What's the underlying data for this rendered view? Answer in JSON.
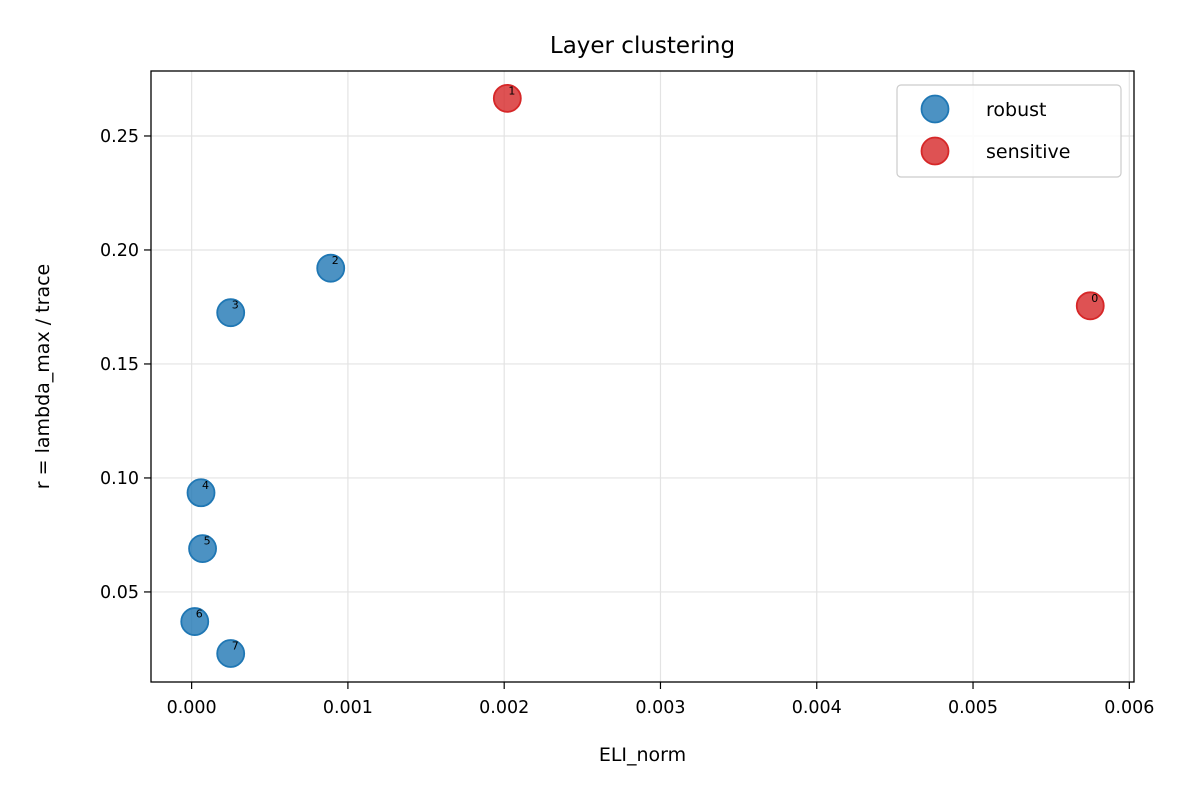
{
  "chart_data": {
    "type": "scatter",
    "title": "Layer clustering",
    "xlabel": "ELI_norm",
    "ylabel": "r = lambda_max / trace",
    "xlim": [
      -0.00026,
      0.00603
    ],
    "ylim": [
      0.0105,
      0.2785
    ],
    "xticks": [
      0.0,
      0.001,
      0.002,
      0.003,
      0.004,
      0.005,
      0.006
    ],
    "xtick_labels": [
      "0.000",
      "0.001",
      "0.002",
      "0.003",
      "0.004",
      "0.005",
      "0.006"
    ],
    "yticks": [
      0.05,
      0.1,
      0.15,
      0.2,
      0.25
    ],
    "ytick_labels": [
      "0.05",
      "0.10",
      "0.15",
      "0.20",
      "0.25"
    ],
    "grid": true,
    "legend_position": "top-right",
    "series": [
      {
        "name": "robust",
        "color": "#1f77b4",
        "points": [
          {
            "label": "2",
            "x": 0.00089,
            "y": 0.192
          },
          {
            "label": "3",
            "x": 0.00025,
            "y": 0.1725
          },
          {
            "label": "4",
            "x": 6e-05,
            "y": 0.0935
          },
          {
            "label": "5",
            "x": 7e-05,
            "y": 0.069
          },
          {
            "label": "6",
            "x": 2e-05,
            "y": 0.037
          },
          {
            "label": "7",
            "x": 0.00025,
            "y": 0.023
          }
        ]
      },
      {
        "name": "sensitive",
        "color": "#d62728",
        "points": [
          {
            "label": "1",
            "x": 0.00202,
            "y": 0.2665
          },
          {
            "label": "0",
            "x": 0.00575,
            "y": 0.1755
          }
        ]
      }
    ]
  }
}
